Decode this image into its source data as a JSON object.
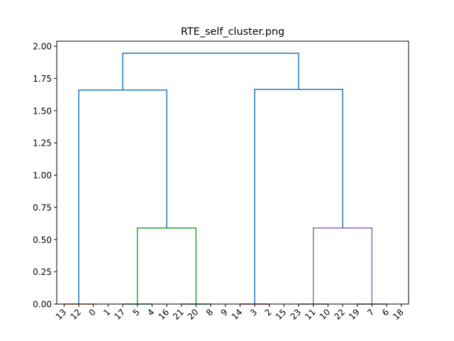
{
  "chart_data": {
    "type": "dendrogram",
    "title": "RTE_self_cluster.png",
    "xlabel": "",
    "ylabel": "",
    "ylim": [
      0,
      2.0
    ],
    "yticks": [
      0.0,
      0.25,
      0.5,
      0.75,
      1.0,
      1.25,
      1.5,
      1.75,
      2.0
    ],
    "ytick_labels": [
      "0.00",
      "0.25",
      "0.50",
      "0.75",
      "1.00",
      "1.25",
      "1.50",
      "1.75",
      "2.00"
    ],
    "leaves": [
      "13",
      "12",
      "0",
      "1",
      "17",
      "5",
      "4",
      "16",
      "21",
      "20",
      "8",
      "9",
      "14",
      "3",
      "2",
      "15",
      "23",
      "11",
      "10",
      "22",
      "19",
      "7",
      "6",
      "18"
    ],
    "colors": {
      "above_threshold": "#1f77b4",
      "cluster_orange": "#ff7f0e",
      "cluster_green": "#2ca02c",
      "cluster_red": "#d62728",
      "cluster_purple": "#9467bd"
    },
    "links": [
      {
        "left": 0.5,
        "right": 2.5,
        "height": 0.0,
        "left_height": 0.0,
        "right_height": 0.0,
        "color": "cluster_orange"
      },
      {
        "left": 4.5,
        "right": 6.5,
        "height": 0.0,
        "left_height": 0.0,
        "right_height": 0.0,
        "color": "cluster_green"
      },
      {
        "left": 8.5,
        "right": 10.5,
        "height": 0.0,
        "left_height": 0.0,
        "right_height": 0.0,
        "color": "cluster_green"
      },
      {
        "left": 5.5,
        "right": 9.5,
        "height": 0.59,
        "left_height": 0.0,
        "right_height": 0.0,
        "color": "cluster_green"
      },
      {
        "left": 1.5,
        "right": 7.5,
        "height": 1.66,
        "left_height": 0.0,
        "right_height": 0.59,
        "color": "above_threshold"
      },
      {
        "left": 12.5,
        "right": 14.5,
        "height": 0.0,
        "left_height": 0.0,
        "right_height": 0.0,
        "color": "cluster_red"
      },
      {
        "left": 16.5,
        "right": 18.5,
        "height": 0.0,
        "left_height": 0.0,
        "right_height": 0.0,
        "color": "cluster_purple"
      },
      {
        "left": 20.5,
        "right": 22.5,
        "height": 0.0,
        "left_height": 0.0,
        "right_height": 0.0,
        "color": "cluster_purple"
      },
      {
        "left": 17.5,
        "right": 21.5,
        "height": 0.59,
        "left_height": 0.0,
        "right_height": 0.0,
        "color": "cluster_purple"
      },
      {
        "left": 13.5,
        "right": 19.5,
        "height": 1.665,
        "left_height": 0.0,
        "right_height": 0.59,
        "color": "above_threshold"
      },
      {
        "left": 4.5,
        "right": 16.5,
        "height": 1.945,
        "left_height": 1.66,
        "right_height": 1.665,
        "color": "above_threshold"
      }
    ]
  }
}
